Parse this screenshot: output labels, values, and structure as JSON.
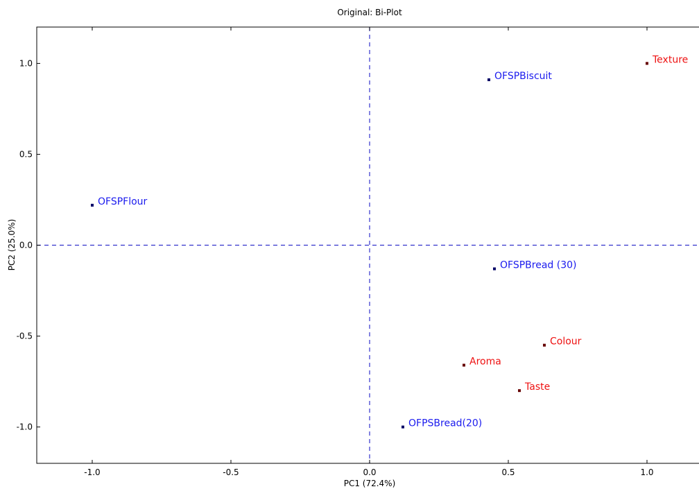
{
  "chart_data": {
    "type": "scatter",
    "title": "Original: Bi-Plot",
    "xlabel": "PC1 (72.4%)",
    "ylabel": "PC2 (25.0%)",
    "xlim": [
      -1.2,
      1.2
    ],
    "ylim": [
      -1.2,
      1.2
    ],
    "xticks": [
      -1.0,
      -0.5,
      0.0,
      0.5,
      1.0
    ],
    "yticks": [
      -1.0,
      -0.5,
      0.0,
      0.5,
      1.0
    ],
    "xtick_labels": [
      "-1.0",
      "-0.5",
      "0.0",
      "0.5",
      "1.0"
    ],
    "ytick_labels": [
      "-1.0",
      "-0.5",
      "0.0",
      "0.5",
      "1.0"
    ],
    "grid": false,
    "reference_lines": {
      "x": 0.0,
      "y": 0.0,
      "color": "#3333cc",
      "style": "dashed"
    },
    "series": [
      {
        "color": "#1a1aee",
        "marker_color": "#000066",
        "points": [
          {
            "label": "OFSPBiscuit",
            "x": 0.43,
            "y": 0.91
          },
          {
            "label": "OFSPFlour",
            "x": -1.0,
            "y": 0.22
          },
          {
            "label": "OFSPBread (30)",
            "x": 0.45,
            "y": -0.13
          },
          {
            "label": "OFPSBread(20)",
            "x": 0.12,
            "y": -1.0
          }
        ]
      },
      {
        "color": "#ee1111",
        "marker_color": "#660000",
        "points": [
          {
            "label": "Texture",
            "x": 1.0,
            "y": 1.0
          },
          {
            "label": "Colour",
            "x": 0.63,
            "y": -0.55
          },
          {
            "label": "Aroma",
            "x": 0.34,
            "y": -0.66
          },
          {
            "label": "Taste",
            "x": 0.54,
            "y": -0.8
          }
        ]
      }
    ]
  }
}
